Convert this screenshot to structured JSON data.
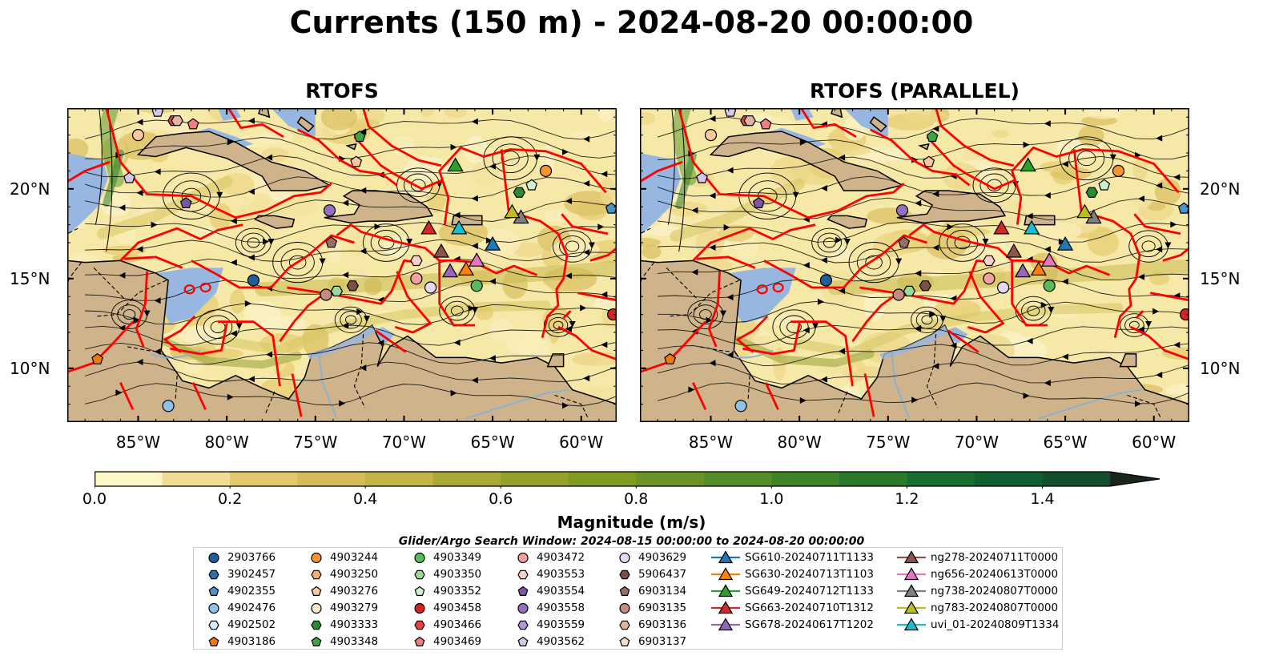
{
  "title": "Currents (150 m) - 2024-08-20 00:00:00",
  "panels": [
    {
      "title": "RTOFS"
    },
    {
      "title": "RTOFS (PARALLEL)"
    }
  ],
  "axes": {
    "lon_ticks": [
      "85°W",
      "80°W",
      "75°W",
      "70°W",
      "65°W",
      "60°W"
    ],
    "lat_ticks": [
      "20°N",
      "15°N",
      "10°N"
    ],
    "lon_range": [
      -89,
      -58
    ],
    "lat_range": [
      7,
      24.5
    ]
  },
  "colorbar": {
    "label": "Magnitude (m/s)",
    "ticks": [
      "0.0",
      "0.2",
      "0.4",
      "0.6",
      "0.8",
      "1.0",
      "1.2",
      "1.4"
    ],
    "range": [
      0,
      1.5
    ],
    "colors": [
      "#fef6c4",
      "#f1dd92",
      "#e3c86b",
      "#d4bc58",
      "#c3b446",
      "#aaa936",
      "#95a02a",
      "#7f9c1e",
      "#6a9524",
      "#558d26",
      "#3f8427",
      "#2b7a2a",
      "#176e2f",
      "#0f6030",
      "#12502b",
      "#154226",
      "#173322",
      "#1a261d"
    ]
  },
  "search_window": "Glider/Argo Search Window: 2024-08-15 00:00:00 to 2024-08-20 00:00:00",
  "colors": {
    "ocean_base": "#f6e8a6",
    "land": "#cfb38a",
    "shelf": "#97b6e0",
    "eez": "#ff0000"
  },
  "legend": {
    "columns": [
      [
        {
          "label": "2903766",
          "shape": "circle",
          "color": "#1f5f9b"
        },
        {
          "label": "3902457",
          "shape": "hexagon",
          "color": "#2f6fad"
        },
        {
          "label": "4902355",
          "shape": "pentagon",
          "color": "#4f93c9"
        },
        {
          "label": "4902476",
          "shape": "circle",
          "color": "#8fc1e8"
        },
        {
          "label": "4902502",
          "shape": "hexagon",
          "color": "#d7ebf8"
        },
        {
          "label": "4903186",
          "shape": "pentagon",
          "color": "#ef7a0b"
        }
      ],
      [
        {
          "label": "4903244",
          "shape": "circle",
          "color": "#f59531"
        },
        {
          "label": "4903250",
          "shape": "hexagon",
          "color": "#f8ad6e"
        },
        {
          "label": "4903276",
          "shape": "pentagon",
          "color": "#f9c99b"
        },
        {
          "label": "4903279",
          "shape": "circle",
          "color": "#fde7cf"
        },
        {
          "label": "4903333",
          "shape": "hexagon",
          "color": "#2b8a2b"
        },
        {
          "label": "4903348",
          "shape": "pentagon",
          "color": "#3ea63e"
        }
      ],
      [
        {
          "label": "4903349",
          "shape": "circle",
          "color": "#5bbb5b"
        },
        {
          "label": "4903350",
          "shape": "hexagon",
          "color": "#9ad99a"
        },
        {
          "label": "4903352",
          "shape": "pentagon",
          "color": "#cdf0cd"
        },
        {
          "label": "4903458",
          "shape": "circle",
          "color": "#d62222"
        },
        {
          "label": "4903466",
          "shape": "hexagon",
          "color": "#e04545"
        },
        {
          "label": "4903469",
          "shape": "pentagon",
          "color": "#ef7f7f"
        }
      ],
      [
        {
          "label": "4903472",
          "shape": "circle",
          "color": "#f4a0a0"
        },
        {
          "label": "4903553",
          "shape": "hexagon",
          "color": "#f8cfcf"
        },
        {
          "label": "4903554",
          "shape": "pentagon",
          "color": "#7a56a8"
        },
        {
          "label": "4903558",
          "shape": "circle",
          "color": "#9470c0"
        },
        {
          "label": "4903559",
          "shape": "hexagon",
          "color": "#b09ad6"
        },
        {
          "label": "4903562",
          "shape": "pentagon",
          "color": "#d4c7eb"
        }
      ],
      [
        {
          "label": "4903629",
          "shape": "circle",
          "color": "#e6d9f5"
        },
        {
          "label": "5906437",
          "shape": "hexagon",
          "color": "#7a5047"
        },
        {
          "label": "6903134",
          "shape": "pentagon",
          "color": "#9a6e63"
        },
        {
          "label": "6903135",
          "shape": "circle",
          "color": "#c38c7e"
        },
        {
          "label": "6903136",
          "shape": "hexagon",
          "color": "#e0b3a3"
        },
        {
          "label": "6903137",
          "shape": "pentagon",
          "color": "#f8dcd2"
        }
      ],
      [
        {
          "label": "SG610-20240711T1133",
          "shape": "triangle-line",
          "color": "#1f77b4"
        },
        {
          "label": "SG630-20240713T1103",
          "shape": "triangle-line",
          "color": "#ff7f0e"
        },
        {
          "label": "SG649-20240712T1133",
          "shape": "triangle-line",
          "color": "#2ca02c"
        },
        {
          "label": "SG663-20240710T1312",
          "shape": "triangle-line",
          "color": "#d62728"
        },
        {
          "label": "SG678-20240617T1202",
          "shape": "triangle-line",
          "color": "#9467bd"
        }
      ],
      [
        {
          "label": "ng278-20240711T0000",
          "shape": "triangle-line",
          "color": "#8c564b"
        },
        {
          "label": "ng656-20240613T0000",
          "shape": "triangle-line",
          "color": "#e377c2"
        },
        {
          "label": "ng738-20240807T0000",
          "shape": "triangle-line",
          "color": "#7f7f7f"
        },
        {
          "label": "ng783-20240807T0000",
          "shape": "triangle-line",
          "color": "#bcbd22"
        },
        {
          "label": "uvi_01-20240809T1334",
          "shape": "triangle-line",
          "color": "#17becf"
        }
      ]
    ]
  },
  "map_markers": [
    {
      "lon": -78.5,
      "lat": 14.9,
      "shape": "circle",
      "color": "#1f5f9b"
    },
    {
      "lon": -58.3,
      "lat": 18.9,
      "shape": "pentagon",
      "color": "#4f93c9"
    },
    {
      "lon": -83.3,
      "lat": 7.9,
      "shape": "circle",
      "color": "#8fc1e8"
    },
    {
      "lon": -87.3,
      "lat": 10.5,
      "shape": "pentagon",
      "color": "#ef7a0b"
    },
    {
      "lon": -62.0,
      "lat": 21.0,
      "shape": "circle",
      "color": "#f59531"
    },
    {
      "lon": -72.7,
      "lat": 21.5,
      "shape": "pentagon",
      "color": "#f9c99b"
    },
    {
      "lon": -85.0,
      "lat": 23.0,
      "shape": "circle",
      "color": "#f9c99b"
    },
    {
      "lon": -63.5,
      "lat": 19.8,
      "shape": "hexagon",
      "color": "#2b8a2b"
    },
    {
      "lon": -72.5,
      "lat": 22.9,
      "shape": "pentagon",
      "color": "#3ea63e"
    },
    {
      "lon": -65.9,
      "lat": 14.6,
      "shape": "circle",
      "color": "#5bbb5b"
    },
    {
      "lon": -73.8,
      "lat": 14.3,
      "shape": "hexagon",
      "color": "#9ad99a"
    },
    {
      "lon": -62.8,
      "lat": 20.2,
      "shape": "pentagon",
      "color": "#cdf0cd"
    },
    {
      "lon": -58.2,
      "lat": 13.0,
      "shape": "circle",
      "color": "#d62222"
    },
    {
      "lon": -83.0,
      "lat": 23.8,
      "shape": "hexagon",
      "color": "#e04545"
    },
    {
      "lon": -81.9,
      "lat": 23.6,
      "shape": "pentagon",
      "color": "#ef7f7f"
    },
    {
      "lon": -69.3,
      "lat": 15.0,
      "shape": "circle",
      "color": "#f4a0a0"
    },
    {
      "lon": -69.3,
      "lat": 16.0,
      "shape": "hexagon",
      "color": "#f8cfcf"
    },
    {
      "lon": -82.3,
      "lat": 19.2,
      "shape": "pentagon",
      "color": "#7a56a8"
    },
    {
      "lon": -74.2,
      "lat": 18.8,
      "shape": "circle",
      "color": "#9470c0"
    },
    {
      "lon": -83.9,
      "lat": 24.3,
      "shape": "pentagon",
      "color": "#d4c7eb"
    },
    {
      "lon": -85.5,
      "lat": 20.6,
      "shape": "pentagon",
      "color": "#d4c7eb"
    },
    {
      "lon": -68.5,
      "lat": 14.5,
      "shape": "circle",
      "color": "#e6d9f5"
    },
    {
      "lon": -72.9,
      "lat": 14.6,
      "shape": "hexagon",
      "color": "#7a5047"
    },
    {
      "lon": -74.1,
      "lat": 17.0,
      "shape": "pentagon",
      "color": "#9a6e63"
    },
    {
      "lon": -74.4,
      "lat": 14.1,
      "shape": "circle",
      "color": "#c38c7e"
    },
    {
      "lon": -82.8,
      "lat": 23.8,
      "shape": "hexagon",
      "color": "#e0b3a3"
    },
    {
      "lon": -65.0,
      "lat": 16.9,
      "shape": "triangle",
      "color": "#1f77b4"
    },
    {
      "lon": -66.5,
      "lat": 15.5,
      "shape": "triangle",
      "color": "#ff7f0e"
    },
    {
      "lon": -67.1,
      "lat": 21.3,
      "shape": "triangle",
      "color": "#2ca02c"
    },
    {
      "lon": -68.6,
      "lat": 17.8,
      "shape": "triangle",
      "color": "#d62728"
    },
    {
      "lon": -67.4,
      "lat": 15.4,
      "shape": "triangle",
      "color": "#9467bd"
    },
    {
      "lon": -67.9,
      "lat": 16.5,
      "shape": "triangle",
      "color": "#8c564b"
    },
    {
      "lon": -65.9,
      "lat": 16.0,
      "shape": "triangle",
      "color": "#e377c2"
    },
    {
      "lon": -63.4,
      "lat": 18.4,
      "shape": "triangle",
      "color": "#7f7f7f"
    },
    {
      "lon": -63.9,
      "lat": 18.7,
      "shape": "triangle",
      "color": "#bcbd22"
    },
    {
      "lon": -66.9,
      "lat": 17.8,
      "shape": "triangle",
      "color": "#17becf"
    }
  ]
}
